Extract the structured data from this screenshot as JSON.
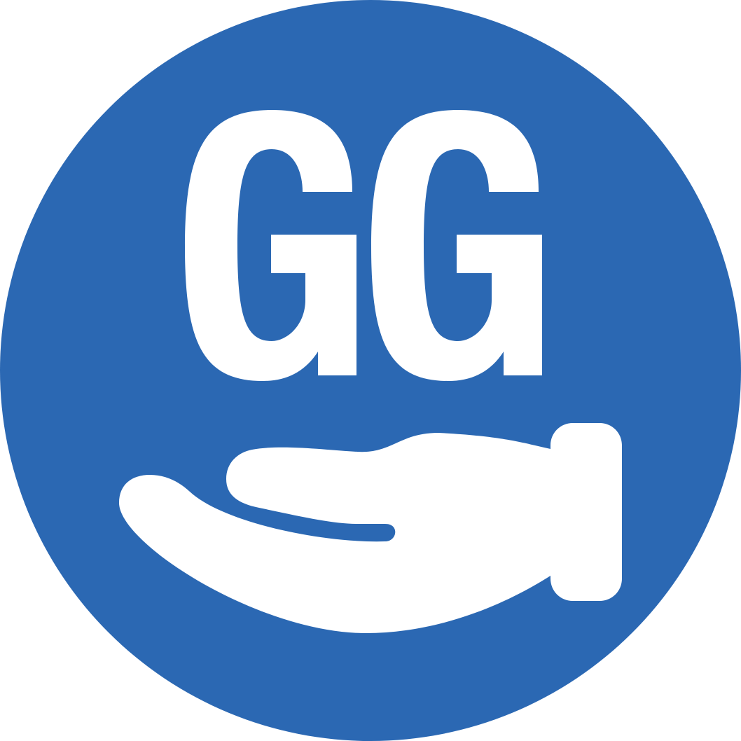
{
  "logo": {
    "text": "GG",
    "icon": "open-hand-icon",
    "colors": {
      "background": "#2B68B3",
      "foreground": "#FFFFFF"
    }
  }
}
